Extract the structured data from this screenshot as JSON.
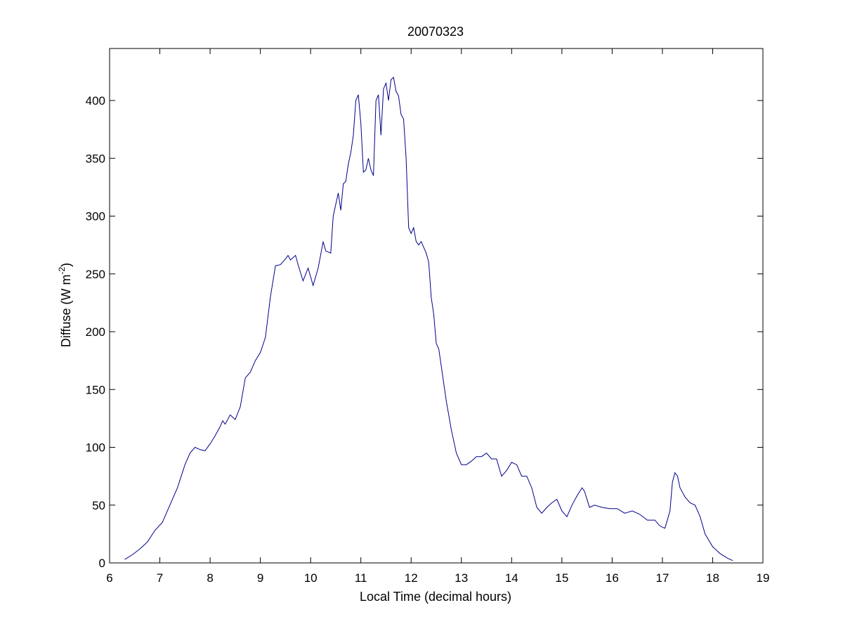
{
  "chart_data": {
    "type": "line",
    "title": "20070323",
    "xlabel": "Local Time (decimal hours)",
    "ylabel_main": "Diffuse (W m",
    "ylabel_sup": "-2",
    "ylabel_tail": ")",
    "xlim": [
      6,
      19
    ],
    "ylim": [
      0,
      445
    ],
    "xticks": [
      6,
      7,
      8,
      9,
      10,
      11,
      12,
      13,
      14,
      15,
      16,
      17,
      18,
      19
    ],
    "yticks": [
      0,
      50,
      100,
      150,
      200,
      250,
      300,
      350,
      400
    ],
    "grid": false,
    "line_color": "#00008b",
    "series": [
      {
        "x": [
          6.3,
          6.45,
          6.6,
          6.75,
          6.9,
          7.05,
          7.2,
          7.35,
          7.5,
          7.6,
          7.7,
          7.8,
          7.9,
          8.0,
          8.1,
          8.2,
          8.25,
          8.3,
          8.4,
          8.5,
          8.6,
          8.7,
          8.8,
          8.9,
          9.0,
          9.1,
          9.2,
          9.3,
          9.4,
          9.5,
          9.55,
          9.6,
          9.7,
          9.75,
          9.85,
          9.95,
          10.05,
          10.15,
          10.25,
          10.3,
          10.4,
          10.45,
          10.55,
          10.6,
          10.65,
          10.7,
          10.75,
          10.8,
          10.85,
          10.9,
          10.95,
          11.0,
          11.05,
          11.1,
          11.15,
          11.2,
          11.25,
          11.3,
          11.35,
          11.4,
          11.45,
          11.5,
          11.55,
          11.6,
          11.65,
          11.7,
          11.75,
          11.8,
          11.85,
          11.9,
          11.95,
          12.0,
          12.05,
          12.1,
          12.15,
          12.2,
          12.25,
          12.3,
          12.35,
          12.4,
          12.45,
          12.5,
          12.55,
          12.6,
          12.7,
          12.8,
          12.9,
          13.0,
          13.1,
          13.2,
          13.3,
          13.4,
          13.5,
          13.6,
          13.7,
          13.8,
          13.9,
          14.0,
          14.1,
          14.2,
          14.3,
          14.4,
          14.5,
          14.6,
          14.7,
          14.8,
          14.9,
          15.0,
          15.1,
          15.2,
          15.3,
          15.4,
          15.45,
          15.55,
          15.65,
          15.8,
          15.95,
          16.1,
          16.25,
          16.4,
          16.55,
          16.7,
          16.85,
          16.95,
          17.05,
          17.15,
          17.2,
          17.25,
          17.3,
          17.35,
          17.45,
          17.55,
          17.65,
          17.75,
          17.85,
          18.0,
          18.15,
          18.3,
          18.4
        ],
        "y": [
          3,
          7,
          12,
          18,
          28,
          35,
          50,
          65,
          85,
          95,
          100,
          98,
          97,
          103,
          110,
          118,
          123,
          120,
          128,
          124,
          135,
          160,
          165,
          175,
          182,
          195,
          230,
          257,
          258,
          263,
          266,
          262,
          266,
          258,
          244,
          255,
          240,
          255,
          278,
          270,
          268,
          300,
          320,
          305,
          328,
          330,
          345,
          355,
          370,
          400,
          405,
          380,
          338,
          340,
          350,
          340,
          335,
          400,
          405,
          370,
          410,
          415,
          400,
          418,
          420,
          408,
          404,
          388,
          384,
          350,
          290,
          285,
          290,
          278,
          275,
          278,
          273,
          268,
          260,
          230,
          215,
          190,
          185,
          170,
          140,
          115,
          95,
          85,
          85,
          88,
          92,
          92,
          95,
          90,
          90,
          75,
          80,
          87,
          85,
          75,
          75,
          65,
          48,
          43,
          48,
          52,
          55,
          45,
          40,
          50,
          58,
          65,
          62,
          48,
          50,
          48,
          47,
          47,
          43,
          45,
          42,
          37,
          37,
          32,
          30,
          45,
          70,
          78,
          75,
          65,
          57,
          52,
          50,
          40,
          25,
          14,
          8,
          4,
          2
        ]
      }
    ]
  }
}
